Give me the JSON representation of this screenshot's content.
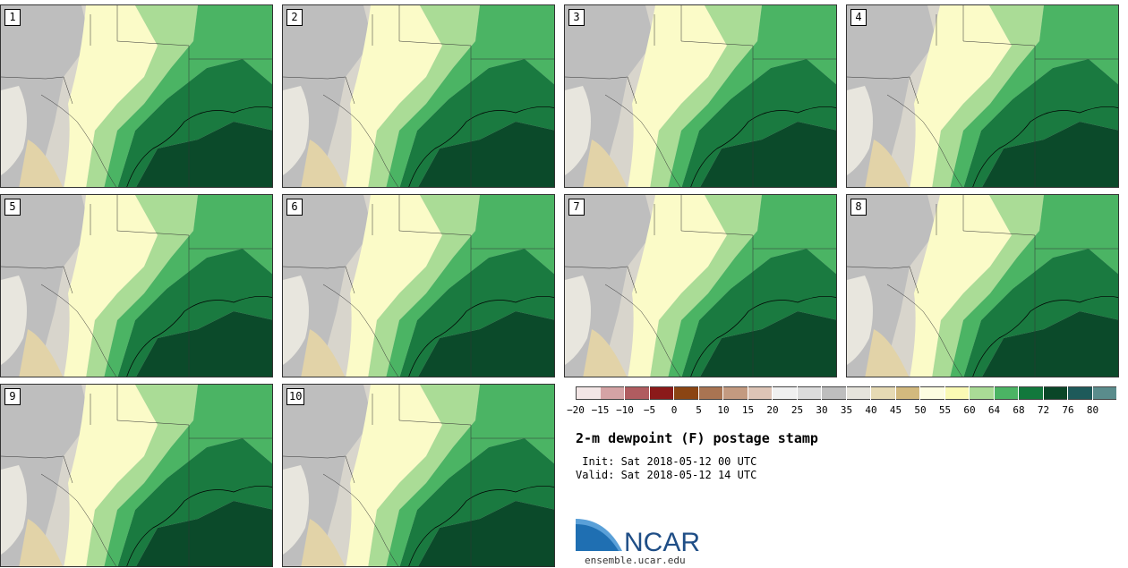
{
  "stamps": [
    {
      "label": "1"
    },
    {
      "label": "2"
    },
    {
      "label": "3"
    },
    {
      "label": "4"
    },
    {
      "label": "5"
    },
    {
      "label": "6"
    },
    {
      "label": "7"
    },
    {
      "label": "8"
    },
    {
      "label": "9"
    },
    {
      "label": "10"
    }
  ],
  "legend": {
    "colors": [
      "#f3e6e6",
      "#d4a3a5",
      "#b05c60",
      "#8b1a1a",
      "#8b4513",
      "#a97452",
      "#c39a80",
      "#ddc4b6",
      "#f0f0f0",
      "#dcdcdc",
      "#bebebe",
      "#e6e4dc",
      "#e6dab4",
      "#d2b97e",
      "#fdfde1",
      "#fafab4",
      "#aadc96",
      "#4bb464",
      "#12783c",
      "#0a4628",
      "#1e5a5a",
      "#5a8c8c"
    ],
    "ticks": [
      "−20",
      "−15",
      "−10",
      "−5",
      "0",
      "5",
      "10",
      "15",
      "20",
      "25",
      "30",
      "35",
      "40",
      "45",
      "50",
      "55",
      "60",
      "64",
      "68",
      "72",
      "76",
      "80"
    ]
  },
  "title": "2-m dewpoint (F) postage stamp",
  "init": " Init: Sat 2018-05-12 00 UTC",
  "valid": "Valid: Sat 2018-05-12 14 UTC",
  "logo_text": "NCAR",
  "site": "ensemble.ucar.edu"
}
